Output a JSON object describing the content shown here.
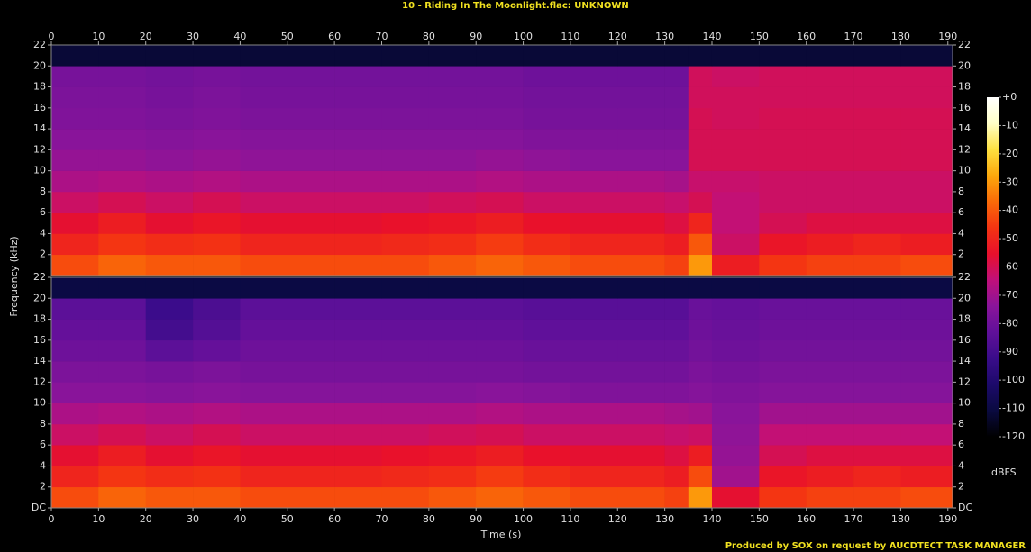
{
  "chart_data": {
    "type": "heatmap",
    "title": "10 - Riding In The Moonlight.flac: UNKNOWN",
    "xlabel": "Time (s)",
    "ylabel": "Frequency (kHz)",
    "footer": "Produced by SOX on request by AUCDTECT TASK MANAGER",
    "xlim": [
      0,
      191
    ],
    "xticks": [
      0,
      10,
      20,
      30,
      40,
      50,
      60,
      70,
      80,
      90,
      100,
      110,
      120,
      130,
      140,
      150,
      160,
      170,
      180,
      190
    ],
    "ylim": [
      0,
      22
    ],
    "x_edges": [
      0,
      10,
      20,
      30,
      40,
      50,
      60,
      70,
      80,
      90,
      100,
      110,
      120,
      130,
      135,
      140,
      150,
      160,
      170,
      180,
      191
    ],
    "y_edges": [
      0,
      2,
      4,
      6,
      8,
      10,
      12,
      14,
      16,
      18,
      20,
      22
    ],
    "channels": [
      {
        "yticks": [
          2,
          4,
          6,
          8,
          10,
          12,
          14,
          16,
          18,
          20,
          22
        ],
        "z": [
          [
            -42,
            -38,
            -40,
            -40,
            -42,
            -42,
            -42,
            -42,
            -40,
            -38,
            -40,
            -42,
            -42,
            -44,
            -30,
            -52,
            -46,
            -44,
            -44,
            -42
          ],
          [
            -50,
            -46,
            -48,
            -47,
            -50,
            -50,
            -50,
            -49,
            -48,
            -45,
            -48,
            -50,
            -50,
            -52,
            -40,
            -62,
            -54,
            -52,
            -50,
            -52
          ],
          [
            -56,
            -52,
            -56,
            -54,
            -56,
            -56,
            -56,
            -55,
            -54,
            -52,
            -55,
            -56,
            -56,
            -58,
            -50,
            -64,
            -60,
            -58,
            -58,
            -58
          ],
          [
            -62,
            -60,
            -62,
            -60,
            -62,
            -62,
            -62,
            -62,
            -61,
            -60,
            -62,
            -62,
            -62,
            -63,
            -60,
            -64,
            -62,
            -62,
            -62,
            -62
          ],
          [
            -68,
            -67,
            -68,
            -67,
            -68,
            -68,
            -68,
            -68,
            -68,
            -67,
            -68,
            -68,
            -68,
            -69,
            -63,
            -63,
            -62,
            -62,
            -62,
            -62
          ],
          [
            -72,
            -72,
            -73,
            -72,
            -73,
            -73,
            -73,
            -73,
            -73,
            -72,
            -73,
            -74,
            -74,
            -74,
            -60,
            -60,
            -60,
            -60,
            -60,
            -60
          ],
          [
            -74,
            -74,
            -75,
            -74,
            -75,
            -75,
            -75,
            -75,
            -75,
            -75,
            -76,
            -76,
            -76,
            -76,
            -60,
            -60,
            -60,
            -60,
            -60,
            -60
          ],
          [
            -76,
            -76,
            -77,
            -76,
            -77,
            -77,
            -77,
            -77,
            -77,
            -77,
            -78,
            -78,
            -78,
            -78,
            -60,
            -61,
            -60,
            -60,
            -60,
            -60
          ],
          [
            -77,
            -77,
            -78,
            -77,
            -78,
            -78,
            -78,
            -78,
            -78,
            -78,
            -79,
            -79,
            -79,
            -79,
            -61,
            -61,
            -61,
            -61,
            -61,
            -61
          ],
          [
            -78,
            -78,
            -79,
            -78,
            -79,
            -79,
            -79,
            -79,
            -79,
            -79,
            -80,
            -80,
            -80,
            -80,
            -61,
            -62,
            -61,
            -61,
            -61,
            -61
          ],
          [
            -112,
            -112,
            -112,
            -112,
            -112,
            -112,
            -112,
            -112,
            -112,
            -112,
            -112,
            -112,
            -112,
            -112,
            -112,
            -112,
            -112,
            -112,
            -112,
            -112
          ]
        ]
      },
      {
        "yticks": [
          {
            "value": 0,
            "label": "DC"
          },
          2,
          4,
          6,
          8,
          10,
          12,
          14,
          16,
          18,
          20,
          22
        ],
        "z": [
          [
            -42,
            -38,
            -40,
            -40,
            -42,
            -42,
            -42,
            -42,
            -40,
            -38,
            -40,
            -42,
            -42,
            -44,
            -30,
            -56,
            -46,
            -44,
            -44,
            -42
          ],
          [
            -50,
            -46,
            -48,
            -47,
            -50,
            -50,
            -50,
            -49,
            -48,
            -45,
            -48,
            -50,
            -50,
            -52,
            -42,
            -70,
            -54,
            -52,
            -50,
            -52
          ],
          [
            -56,
            -52,
            -56,
            -54,
            -56,
            -56,
            -56,
            -55,
            -54,
            -52,
            -55,
            -56,
            -56,
            -58,
            -52,
            -72,
            -60,
            -58,
            -58,
            -58
          ],
          [
            -62,
            -60,
            -62,
            -60,
            -62,
            -62,
            -62,
            -62,
            -61,
            -60,
            -62,
            -62,
            -62,
            -63,
            -62,
            -73,
            -64,
            -64,
            -64,
            -64
          ],
          [
            -68,
            -67,
            -68,
            -67,
            -68,
            -68,
            -68,
            -68,
            -68,
            -67,
            -68,
            -68,
            -68,
            -69,
            -70,
            -74,
            -70,
            -70,
            -70,
            -70
          ],
          [
            -74,
            -74,
            -75,
            -74,
            -75,
            -75,
            -75,
            -75,
            -75,
            -74,
            -75,
            -76,
            -76,
            -76,
            -75,
            -76,
            -75,
            -75,
            -75,
            -75
          ],
          [
            -77,
            -77,
            -78,
            -77,
            -78,
            -78,
            -78,
            -78,
            -78,
            -78,
            -79,
            -79,
            -79,
            -79,
            -77,
            -78,
            -77,
            -77,
            -77,
            -77
          ],
          [
            -80,
            -80,
            -84,
            -82,
            -80,
            -80,
            -80,
            -80,
            -80,
            -80,
            -81,
            -81,
            -81,
            -81,
            -79,
            -80,
            -79,
            -79,
            -79,
            -79
          ],
          [
            -82,
            -82,
            -90,
            -86,
            -82,
            -82,
            -82,
            -82,
            -82,
            -82,
            -83,
            -83,
            -83,
            -83,
            -80,
            -81,
            -80,
            -80,
            -80,
            -80
          ],
          [
            -84,
            -84,
            -92,
            -88,
            -84,
            -84,
            -84,
            -84,
            -84,
            -84,
            -85,
            -85,
            -85,
            -85,
            -81,
            -82,
            -81,
            -81,
            -81,
            -81
          ],
          [
            -110,
            -110,
            -110,
            -110,
            -110,
            -110,
            -110,
            -110,
            -110,
            -110,
            -110,
            -110,
            -110,
            -110,
            -110,
            -110,
            -110,
            -110,
            -110,
            -110
          ]
        ]
      }
    ],
    "colorbar": {
      "label": "dBFS",
      "zlim": [
        -120,
        0
      ],
      "ticks": [
        {
          "value": 0,
          "label": "+0"
        },
        -10,
        -20,
        -30,
        -40,
        -50,
        -60,
        -70,
        -80,
        -90,
        -100,
        -110,
        -120
      ],
      "colors": [
        "#000000",
        "#0a0a40",
        "#1c0a6a",
        "#3a0c8a",
        "#60109a",
        "#8a149a",
        "#c0107a",
        "#e8102c",
        "#f43412",
        "#fa6a08",
        "#fca80c",
        "#fde040",
        "#ffffc8",
        "#ffffff"
      ]
    }
  }
}
